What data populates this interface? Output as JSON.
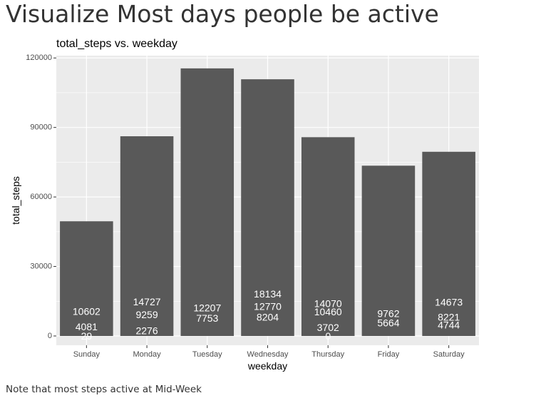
{
  "page": {
    "heading": "Visualize Most days people be active",
    "note": "Note that most steps active at Mid-Week"
  },
  "chart_data": {
    "type": "bar",
    "title": "total_steps vs. weekday",
    "xlabel": "weekday",
    "ylabel": "total_steps",
    "categories": [
      "Sunday",
      "Monday",
      "Tuesday",
      "Wednesday",
      "Thursday",
      "Friday",
      "Saturday"
    ],
    "values": [
      49500,
      86200,
      115500,
      110800,
      85800,
      73500,
      79500
    ],
    "ylim": [
      -4000,
      121000
    ],
    "yticks": [
      0,
      30000,
      60000,
      90000,
      120000
    ],
    "ytick_labels": [
      "0",
      "30000",
      "60000",
      "90000",
      "120000"
    ],
    "grid": true,
    "bar_color": "#595959",
    "panel_color": "#ebebeb",
    "grid_color": "#ffffff",
    "annotations": [
      {
        "category": "Sunday",
        "labels": [
          {
            "text": "10602",
            "y": 10602
          },
          {
            "text": "4081",
            "y": 4081
          },
          {
            "text": "29",
            "y": 29
          }
        ]
      },
      {
        "category": "Monday",
        "labels": [
          {
            "text": "14727",
            "y": 14727
          },
          {
            "text": "9259",
            "y": 9259
          },
          {
            "text": "2276",
            "y": 2276
          }
        ]
      },
      {
        "category": "Tuesday",
        "labels": [
          {
            "text": "12207",
            "y": 12207
          },
          {
            "text": "7753",
            "y": 7753
          }
        ]
      },
      {
        "category": "Wednesday",
        "labels": [
          {
            "text": "18134",
            "y": 18134
          },
          {
            "text": "12770",
            "y": 12770
          },
          {
            "text": "8204",
            "y": 8204
          }
        ]
      },
      {
        "category": "Thursday",
        "labels": [
          {
            "text": "14070",
            "y": 14070
          },
          {
            "text": "10460",
            "y": 10460
          },
          {
            "text": "3702",
            "y": 3702
          },
          {
            "text": "0",
            "y": 0
          }
        ]
      },
      {
        "category": "Friday",
        "labels": [
          {
            "text": "9762",
            "y": 9762
          },
          {
            "text": "5664",
            "y": 5664
          }
        ]
      },
      {
        "category": "Saturday",
        "labels": [
          {
            "text": "14673",
            "y": 14673
          },
          {
            "text": "8221",
            "y": 8221
          },
          {
            "text": "4744",
            "y": 4744
          }
        ]
      }
    ]
  }
}
